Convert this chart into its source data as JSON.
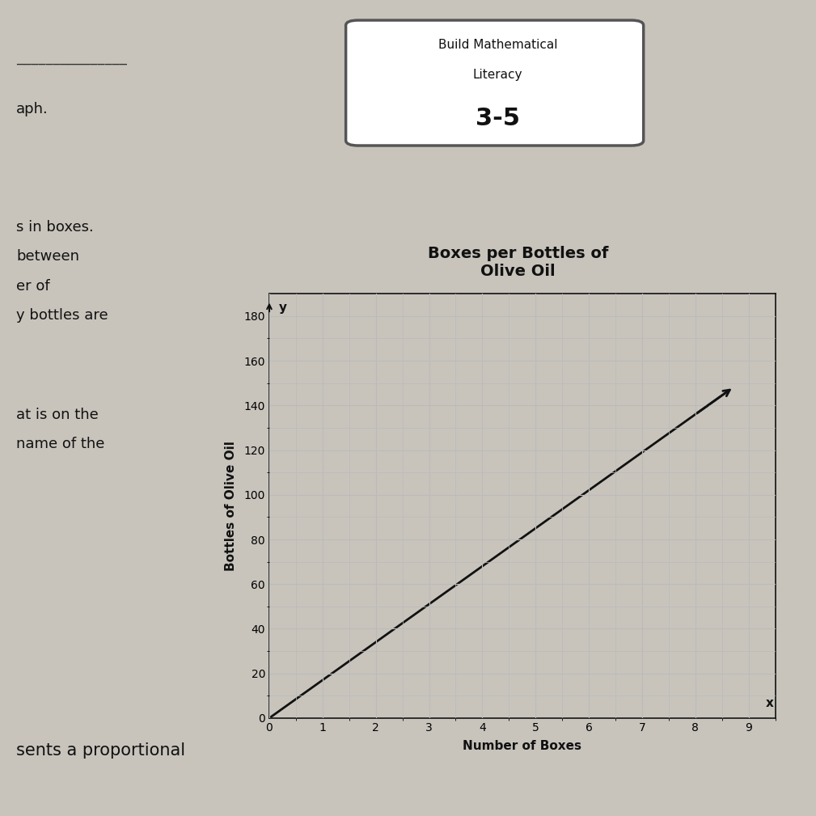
{
  "title": "Boxes per Bottles of\nOlive Oil",
  "xlabel": "Number of Boxes",
  "ylabel": "Bottles of Olive Oil",
  "xlim": [
    0,
    9.5
  ],
  "ylim": [
    0,
    190
  ],
  "xticks": [
    0,
    1,
    2,
    3,
    4,
    5,
    6,
    7,
    8,
    9
  ],
  "yticks": [
    0,
    20,
    40,
    60,
    80,
    100,
    120,
    140,
    160,
    180
  ],
  "line_x": [
    0,
    8.6
  ],
  "line_y": [
    0,
    146.2
  ],
  "line_color": "#111111",
  "line_width": 2.0,
  "grid_color": "#bbbbbb",
  "bg_color": "#c8c4bc",
  "page_bg": "#c8c4bc",
  "title_fontsize": 14,
  "axis_label_fontsize": 11,
  "tick_fontsize": 10,
  "text_left_lines": [
    "aph.",
    "",
    "s in boxes.",
    "between",
    "er of",
    "y bottles are",
    "",
    "",
    "at is on the",
    "name of the",
    "",
    "",
    "",
    "",
    "sents a proportional"
  ],
  "bml_line1": "Build Mathematical",
  "bml_line2": "Literacy",
  "bml_number": "3-5",
  "horizontal_line_text": ""
}
